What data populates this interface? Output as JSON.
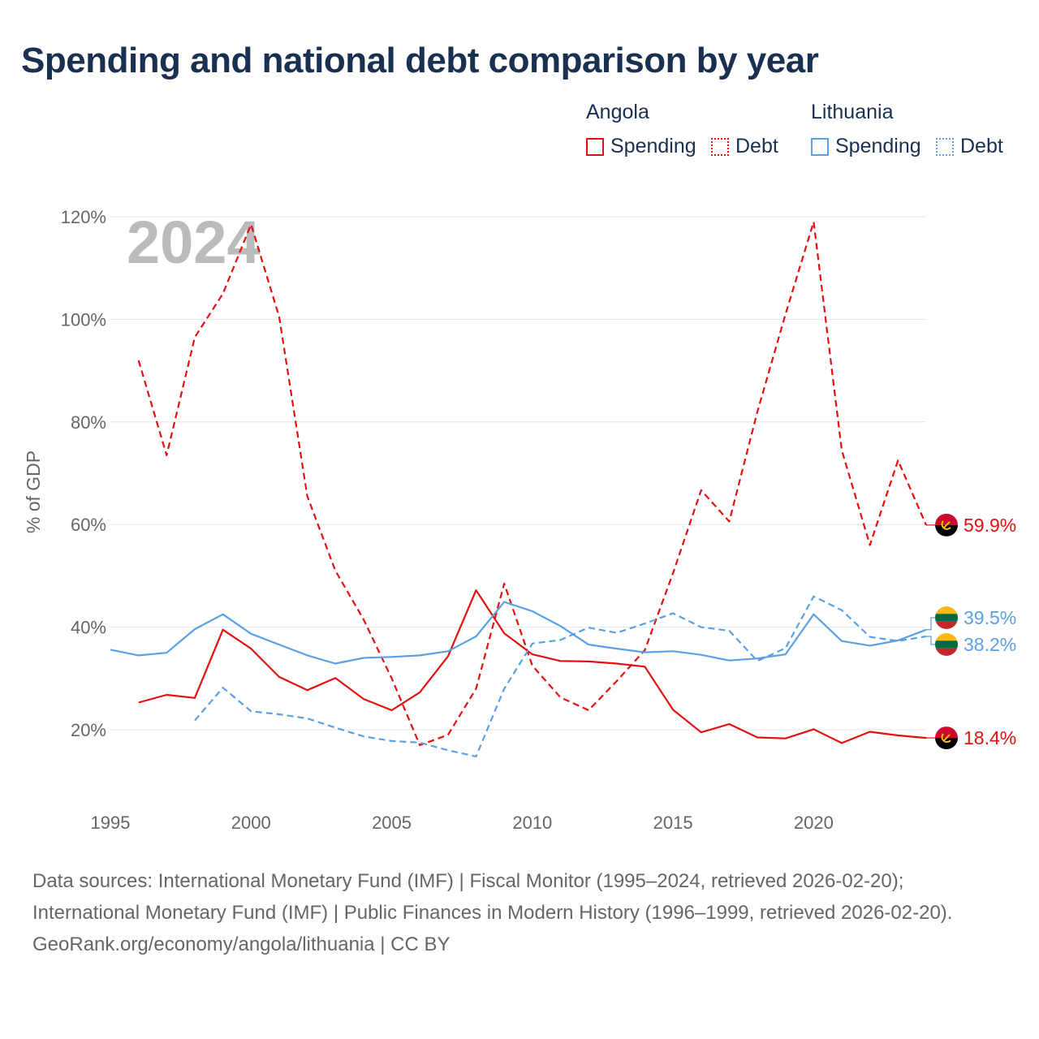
{
  "title": "Spending and national debt comparison by year",
  "legend": {
    "angola": {
      "name": "Angola",
      "spending": "Spending",
      "debt": "Debt"
    },
    "lithuania": {
      "name": "Lithuania",
      "spending": "Spending",
      "debt": "Debt"
    }
  },
  "colors": {
    "angola": "#e31010",
    "lithuania": "#5aa0e2",
    "grid": "#e6e6e6",
    "axis_text": "#666666",
    "year": "#bbbbbb"
  },
  "year_watermark": "2024",
  "chart_data": {
    "type": "line",
    "ylabel": "% of GDP",
    "xlim": [
      1995,
      2024
    ],
    "ylim": [
      10,
      120
    ],
    "x_ticks": [
      "1995",
      "2000",
      "2005",
      "2010",
      "2015",
      "2020"
    ],
    "y_ticks": [
      "20%",
      "40%",
      "60%",
      "80%",
      "100%",
      "120%"
    ],
    "series": [
      {
        "name": "Angola Spending",
        "country": "angola",
        "style": "solid",
        "x": [
          1996,
          1997,
          1998,
          1999,
          2000,
          2001,
          2002,
          2003,
          2004,
          2005,
          2006,
          2007,
          2008,
          2009,
          2010,
          2011,
          2012,
          2013,
          2014,
          2015,
          2016,
          2017,
          2018,
          2019,
          2020,
          2021,
          2022,
          2023,
          2024
        ],
        "values": [
          25.3,
          26.8,
          26.2,
          39.5,
          35.8,
          30.3,
          27.7,
          30.1,
          26.0,
          23.8,
          27.3,
          34.3,
          47.2,
          38.8,
          34.7,
          33.4,
          33.3,
          32.9,
          32.3,
          23.9,
          19.5,
          21.1,
          18.5,
          18.3,
          20.1,
          17.4,
          19.6,
          18.9,
          18.4
        ],
        "end_label": "18.4%"
      },
      {
        "name": "Angola Debt",
        "country": "angola",
        "style": "dashed",
        "x": [
          1996,
          1997,
          1998,
          1999,
          2000,
          2001,
          2002,
          2003,
          2004,
          2005,
          2006,
          2007,
          2008,
          2009,
          2010,
          2011,
          2012,
          2013,
          2014,
          2015,
          2016,
          2017,
          2018,
          2019,
          2020,
          2021,
          2022,
          2023,
          2024
        ],
        "values": [
          92.0,
          73.5,
          96.5,
          105.0,
          118.5,
          100.5,
          65.5,
          51.0,
          41.5,
          30.0,
          17.0,
          19.0,
          28.0,
          48.5,
          32.5,
          26.3,
          23.8,
          29.5,
          35.5,
          50.5,
          66.7,
          60.6,
          82.0,
          101.0,
          119.0,
          74.5,
          56.0,
          72.5,
          59.9
        ],
        "end_label": "59.9%"
      },
      {
        "name": "Lithuania Spending",
        "country": "lithuania",
        "style": "solid",
        "x": [
          1995,
          1996,
          1997,
          1998,
          1999,
          2000,
          2001,
          2002,
          2003,
          2004,
          2005,
          2006,
          2007,
          2008,
          2009,
          2010,
          2011,
          2012,
          2013,
          2014,
          2015,
          2016,
          2017,
          2018,
          2019,
          2020,
          2021,
          2022,
          2023,
          2024
        ],
        "values": [
          35.6,
          34.5,
          35.0,
          39.6,
          42.5,
          38.7,
          36.6,
          34.5,
          32.9,
          34.0,
          34.2,
          34.5,
          35.3,
          38.2,
          44.9,
          43.1,
          40.2,
          36.6,
          35.8,
          35.1,
          35.3,
          34.6,
          33.5,
          33.9,
          34.7,
          42.5,
          37.3,
          36.4,
          37.4,
          39.5
        ],
        "end_label": "39.5%"
      },
      {
        "name": "Lithuania Debt",
        "country": "lithuania",
        "style": "dashed",
        "x": [
          1998,
          1999,
          2000,
          2001,
          2002,
          2003,
          2004,
          2005,
          2006,
          2007,
          2008,
          2009,
          2010,
          2011,
          2012,
          2013,
          2014,
          2015,
          2016,
          2017,
          2018,
          2019,
          2020,
          2021,
          2022,
          2023,
          2024
        ],
        "values": [
          21.8,
          28.2,
          23.6,
          23.0,
          22.2,
          20.4,
          18.7,
          17.8,
          17.5,
          16.0,
          14.8,
          28.0,
          36.8,
          37.5,
          39.9,
          38.9,
          40.7,
          42.7,
          40.0,
          39.3,
          33.4,
          35.9,
          46.0,
          43.3,
          38.1,
          37.3,
          38.2
        ],
        "end_label": "38.2%"
      }
    ]
  },
  "footer": {
    "sources": "Data sources: International Monetary Fund (IMF) | Fiscal Monitor (1995–2024, retrieved 2026-02-20); International Monetary Fund (IMF) | Public Finances in Modern History (1996–1999, retrieved 2026-02-20).",
    "credit": "GeoRank.org/economy/angola/lithuania | CC BY"
  }
}
